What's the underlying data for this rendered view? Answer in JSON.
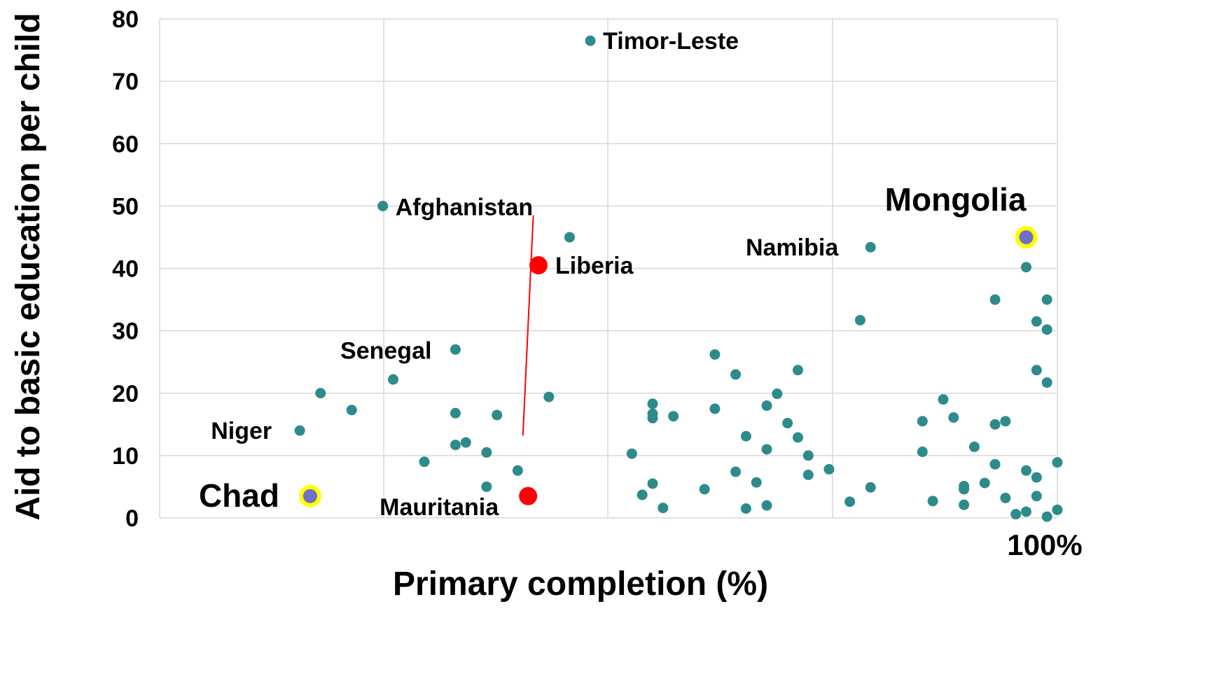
{
  "chart_data": {
    "type": "scatter",
    "title": "",
    "xlabel": "Primary completion (%)",
    "ylabel": "Aid to basic education per child",
    "x_tick_labels": [
      "100%"
    ],
    "xlim": [
      0,
      100
    ],
    "ylim": [
      0,
      80
    ],
    "y_ticks": [
      "0",
      "10",
      "20",
      "30",
      "40",
      "50",
      "60",
      "70",
      "80"
    ],
    "grid": true,
    "colors": {
      "default": "#2e8b8b",
      "highlight_red": "#ff0000",
      "highlight_blue": "#7070c8",
      "highlight_ring": "#ffff00",
      "trend_line": "#ff0000"
    },
    "points": [
      {
        "x": 55.0,
        "y": 76.5,
        "label": "Timor-Leste"
      },
      {
        "x": 35.0,
        "y": 50.0,
        "label": "Afghanistan"
      },
      {
        "x": 53.0,
        "y": 45.0
      },
      {
        "x": 50.0,
        "y": 40.5,
        "label": "Liberia",
        "style": "red"
      },
      {
        "x": 82.0,
        "y": 43.4,
        "label": "Namibia"
      },
      {
        "x": 97.0,
        "y": 45.0,
        "label": "Mongolia",
        "style": "ring"
      },
      {
        "x": 42.0,
        "y": 27.0,
        "label": "Senegal"
      },
      {
        "x": 27.0,
        "y": 14.0,
        "label": "Niger"
      },
      {
        "x": 28.0,
        "y": 3.5,
        "label": "Chad",
        "style": "ring"
      },
      {
        "x": 49.0,
        "y": 3.5,
        "label": "Mauritania",
        "style": "red"
      },
      {
        "x": 29.0,
        "y": 20.0
      },
      {
        "x": 32.0,
        "y": 17.3
      },
      {
        "x": 36.0,
        "y": 22.2
      },
      {
        "x": 39.0,
        "y": 9.0
      },
      {
        "x": 42.0,
        "y": 16.8
      },
      {
        "x": 42.0,
        "y": 11.7
      },
      {
        "x": 43.0,
        "y": 12.1
      },
      {
        "x": 45.0,
        "y": 10.5
      },
      {
        "x": 45.0,
        "y": 5.0
      },
      {
        "x": 46.0,
        "y": 16.5
      },
      {
        "x": 48.0,
        "y": 7.6
      },
      {
        "x": 51.0,
        "y": 19.4
      },
      {
        "x": 59.0,
        "y": 10.3
      },
      {
        "x": 60.0,
        "y": 3.7
      },
      {
        "x": 61.0,
        "y": 18.3
      },
      {
        "x": 61.0,
        "y": 16.7
      },
      {
        "x": 61.0,
        "y": 16.0
      },
      {
        "x": 61.0,
        "y": 5.5
      },
      {
        "x": 62.0,
        "y": 1.6
      },
      {
        "x": 63.0,
        "y": 16.3
      },
      {
        "x": 66.0,
        "y": 4.6
      },
      {
        "x": 67.0,
        "y": 26.2
      },
      {
        "x": 67.0,
        "y": 17.5
      },
      {
        "x": 69.0,
        "y": 23.0
      },
      {
        "x": 69.0,
        "y": 7.4
      },
      {
        "x": 70.0,
        "y": 13.1
      },
      {
        "x": 70.0,
        "y": 1.5
      },
      {
        "x": 71.0,
        "y": 5.7
      },
      {
        "x": 72.0,
        "y": 18.0
      },
      {
        "x": 72.0,
        "y": 11.0
      },
      {
        "x": 72.0,
        "y": 2.0
      },
      {
        "x": 73.0,
        "y": 19.9
      },
      {
        "x": 74.0,
        "y": 15.2
      },
      {
        "x": 75.0,
        "y": 23.7
      },
      {
        "x": 75.0,
        "y": 12.9
      },
      {
        "x": 76.0,
        "y": 10.0
      },
      {
        "x": 76.0,
        "y": 6.9
      },
      {
        "x": 78.0,
        "y": 7.8
      },
      {
        "x": 80.0,
        "y": 2.6
      },
      {
        "x": 81.0,
        "y": 31.7
      },
      {
        "x": 82.0,
        "y": 4.9
      },
      {
        "x": 87.0,
        "y": 15.5
      },
      {
        "x": 87.0,
        "y": 10.6
      },
      {
        "x": 88.0,
        "y": 2.7
      },
      {
        "x": 89.0,
        "y": 19.0
      },
      {
        "x": 90.0,
        "y": 16.1
      },
      {
        "x": 91.0,
        "y": 5.1
      },
      {
        "x": 91.0,
        "y": 4.6
      },
      {
        "x": 91.0,
        "y": 2.1
      },
      {
        "x": 92.0,
        "y": 11.4
      },
      {
        "x": 93.0,
        "y": 5.6
      },
      {
        "x": 94.0,
        "y": 35.0
      },
      {
        "x": 94.0,
        "y": 15.0
      },
      {
        "x": 94.0,
        "y": 8.6
      },
      {
        "x": 95.0,
        "y": 15.5
      },
      {
        "x": 95.0,
        "y": 3.2
      },
      {
        "x": 96.0,
        "y": 0.6
      },
      {
        "x": 97.0,
        "y": 40.2
      },
      {
        "x": 97.0,
        "y": 7.6
      },
      {
        "x": 97.0,
        "y": 1.0
      },
      {
        "x": 98.0,
        "y": 31.5
      },
      {
        "x": 98.0,
        "y": 23.7
      },
      {
        "x": 98.0,
        "y": 6.5
      },
      {
        "x": 98.0,
        "y": 3.5
      },
      {
        "x": 99.0,
        "y": 35.0
      },
      {
        "x": 99.0,
        "y": 30.2
      },
      {
        "x": 99.0,
        "y": 21.7
      },
      {
        "x": 99.0,
        "y": 0.2
      },
      {
        "x": 100.0,
        "y": 8.9
      },
      {
        "x": 100.0,
        "y": 1.3
      }
    ],
    "trend_line": {
      "x": [
        48.5,
        49.5
      ],
      "y": [
        13.2,
        48.5
      ]
    }
  }
}
